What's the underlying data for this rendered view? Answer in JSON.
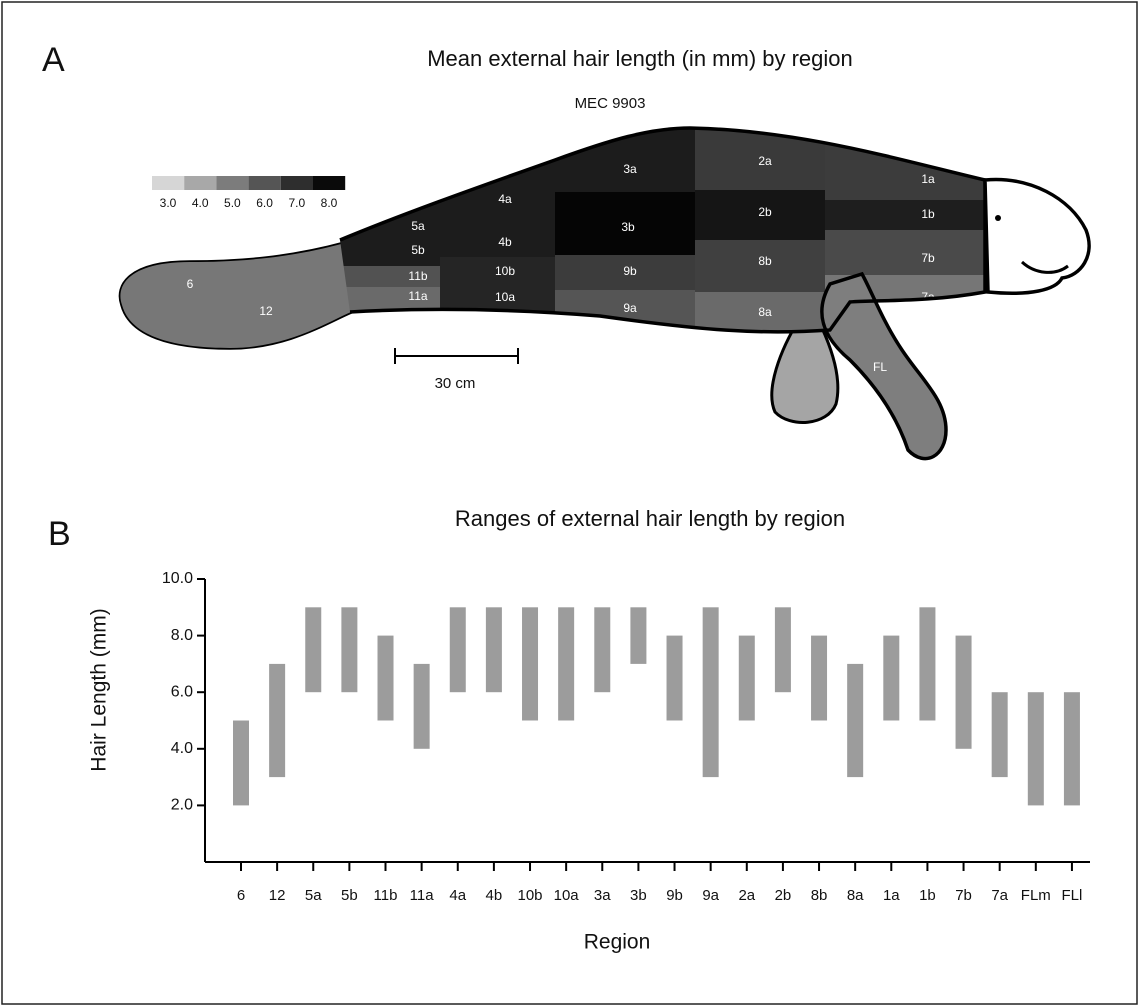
{
  "chart_data": [
    {
      "type": "region-map",
      "panel": "A",
      "title": "Mean external hair length (in mm) by region",
      "subtitle": "MEC 9903",
      "scale_bar_label": "30 cm",
      "legend": {
        "ticks": [
          {
            "value": 3,
            "label": "3.0"
          },
          {
            "value": 4,
            "label": "4.0"
          },
          {
            "value": 5,
            "label": "5.0"
          },
          {
            "value": 6,
            "label": "6.0"
          },
          {
            "value": 7,
            "label": "7.0"
          },
          {
            "value": 8,
            "label": "8.0"
          }
        ],
        "colors": [
          "#d6d6d6",
          "#a8a8a8",
          "#7c7c7c",
          "#555555",
          "#2e2e2e",
          "#0a0a0a"
        ]
      },
      "regions": [
        {
          "label": "6",
          "color": "#bdbdbd"
        },
        {
          "label": "12",
          "color": "#777777"
        },
        {
          "label": "5a",
          "color": "#1c1c1c"
        },
        {
          "label": "5b",
          "color": "#1c1c1c"
        },
        {
          "label": "11b",
          "color": "#525252"
        },
        {
          "label": "11a",
          "color": "#6a6a6a"
        },
        {
          "label": "4a",
          "color": "#1c1c1c"
        },
        {
          "label": "4b",
          "color": "#1c1c1c"
        },
        {
          "label": "10b",
          "color": "#252525"
        },
        {
          "label": "10a",
          "color": "#252525"
        },
        {
          "label": "3a",
          "color": "#1c1c1c"
        },
        {
          "label": "3b",
          "color": "#050505"
        },
        {
          "label": "9b",
          "color": "#3c3c3c"
        },
        {
          "label": "9a",
          "color": "#555555"
        },
        {
          "label": "2a",
          "color": "#3a3a3a"
        },
        {
          "label": "2b",
          "color": "#151515"
        },
        {
          "label": "8b",
          "color": "#404040"
        },
        {
          "label": "8a",
          "color": "#6a6a6a"
        },
        {
          "label": "1a",
          "color": "#3c3c3c"
        },
        {
          "label": "1b",
          "color": "#1e1e1e"
        },
        {
          "label": "7b",
          "color": "#4a4a4a"
        },
        {
          "label": "7a",
          "color": "#767676"
        },
        {
          "label": "FL",
          "color": "#7e7e7e"
        }
      ]
    },
    {
      "type": "range",
      "panel": "B",
      "title": "Ranges of external hair length by region",
      "x_label": "Region",
      "y_label": "Hair Length (mm)",
      "categories": [
        "6",
        "12",
        "5a",
        "5b",
        "11b",
        "11a",
        "4a",
        "4b",
        "10b",
        "10a",
        "3a",
        "3b",
        "9b",
        "9a",
        "2a",
        "2b",
        "8b",
        "8a",
        "1a",
        "1b",
        "7b",
        "7a",
        "FLm",
        "FLl"
      ],
      "low": [
        2,
        3,
        6,
        6,
        5,
        4,
        6,
        6,
        5,
        5,
        6,
        7,
        5,
        3,
        5,
        6,
        5,
        3,
        5,
        5,
        4,
        3,
        2,
        2
      ],
      "high": [
        5,
        7,
        9,
        9,
        8,
        7,
        9,
        9,
        9,
        9,
        9,
        9,
        8,
        9,
        8,
        9,
        8,
        7,
        8,
        9,
        8,
        6,
        6,
        6
      ],
      "color": "#9c9c9c",
      "ylim": [
        0,
        10
      ],
      "yticks": [
        {
          "value": 2,
          "label": "2.0"
        },
        {
          "value": 4,
          "label": "4.0"
        },
        {
          "value": 6,
          "label": "6.0"
        },
        {
          "value": 8,
          "label": "8.0"
        },
        {
          "value": 10,
          "label": "10.0"
        }
      ]
    }
  ]
}
